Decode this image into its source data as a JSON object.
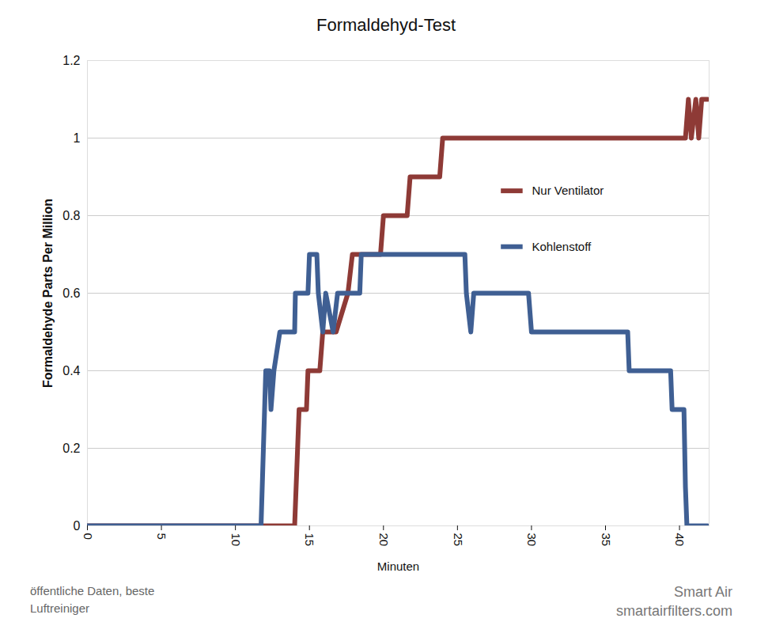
{
  "chart_data": {
    "type": "line",
    "title": "Formaldehyd-Test",
    "x_label": "Minuten",
    "y_label": "Formaldehyde Parts Per Million",
    "xlim": [
      0,
      42
    ],
    "xticks": [
      0,
      5,
      10,
      15,
      20,
      25,
      30,
      35,
      40
    ],
    "ylim": [
      0,
      1.2
    ],
    "yticks": [
      0,
      0.2,
      0.4,
      0.6,
      0.8,
      1,
      1.2
    ],
    "grid": true,
    "legend": "right",
    "series": [
      {
        "name": "Nur Ventilator",
        "color": "#8e3a36",
        "x": [
          0,
          14.0,
          14.3,
          14.8,
          14.9,
          15.7,
          15.9,
          16.8,
          17.6,
          17.9,
          19.8,
          20.0,
          21.6,
          21.8,
          23.8,
          24.0,
          40.4,
          40.6,
          40.8,
          41.1,
          41.3,
          41.5,
          41.9
        ],
        "values": [
          0,
          0,
          0.3,
          0.3,
          0.4,
          0.4,
          0.5,
          0.5,
          0.6,
          0.7,
          0.7,
          0.8,
          0.8,
          0.9,
          0.9,
          1.0,
          1.0,
          1.1,
          1.0,
          1.1,
          1.0,
          1.1,
          1.1
        ]
      },
      {
        "name": "Kohlenstoff",
        "color": "#3f5f93",
        "x": [
          0,
          11.73,
          12.05,
          12.3,
          12.4,
          12.6,
          13.0,
          14.0,
          14.05,
          14.9,
          15.0,
          15.5,
          15.6,
          15.9,
          16.1,
          16.6,
          16.9,
          18.4,
          18.5,
          25.5,
          25.6,
          25.9,
          26.1,
          29.8,
          30.0,
          36.5,
          36.6,
          39.4,
          39.5,
          40.3,
          40.4,
          40.5,
          41.9
        ],
        "values": [
          0,
          0,
          0.4,
          0.4,
          0.3,
          0.4,
          0.5,
          0.5,
          0.6,
          0.6,
          0.7,
          0.7,
          0.6,
          0.5,
          0.6,
          0.5,
          0.6,
          0.6,
          0.7,
          0.7,
          0.6,
          0.5,
          0.6,
          0.6,
          0.5,
          0.5,
          0.4,
          0.4,
          0.3,
          0.3,
          0.1,
          0,
          0
        ]
      }
    ],
    "annotations": [
      "öffentliche Daten, beste Luftreiniger",
      "Smart Air",
      "smartairfilters.com"
    ]
  }
}
